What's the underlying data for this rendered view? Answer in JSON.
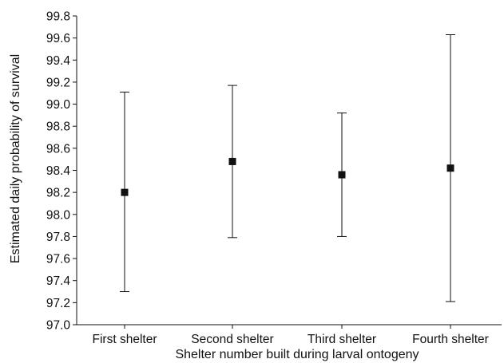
{
  "chart_data": {
    "type": "scatter",
    "xlabel": "Shelter number built during larval ontogeny",
    "ylabel": "Estimated daily probability of survival",
    "categories": [
      "First shelter",
      "Second shelter",
      "Third shelter",
      "Fourth shelter"
    ],
    "series": [
      {
        "values": [
          98.2,
          98.48,
          98.36,
          98.42
        ],
        "error_low": [
          97.3,
          97.79,
          97.8,
          97.21
        ],
        "error_high": [
          99.11,
          99.17,
          98.92,
          99.63
        ],
        "marker": "square",
        "color": "#111111"
      }
    ],
    "ylim": [
      97.0,
      99.8
    ],
    "yticks": [
      "97.0",
      "97.2",
      "97.4",
      "97.6",
      "97.8",
      "98.0",
      "98.2",
      "98.4",
      "98.6",
      "98.8",
      "99.0",
      "99.2",
      "99.4",
      "99.6",
      "99.8"
    ],
    "grid": false,
    "legend": "none"
  }
}
